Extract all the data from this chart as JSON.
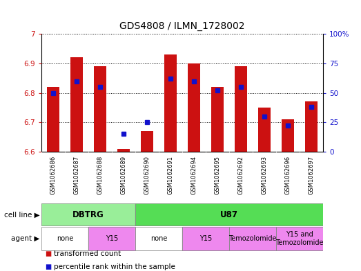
{
  "title": "GDS4808 / ILMN_1728002",
  "samples": [
    "GSM1062686",
    "GSM1062687",
    "GSM1062688",
    "GSM1062689",
    "GSM1062690",
    "GSM1062691",
    "GSM1062694",
    "GSM1062695",
    "GSM1062692",
    "GSM1062693",
    "GSM1062696",
    "GSM1062697"
  ],
  "red_values": [
    6.82,
    6.92,
    6.89,
    6.61,
    6.67,
    6.93,
    6.9,
    6.82,
    6.89,
    6.75,
    6.71,
    6.77
  ],
  "blue_values": [
    50,
    60,
    55,
    15,
    25,
    62,
    60,
    52,
    55,
    30,
    22,
    38
  ],
  "ymin": 6.6,
  "ymax": 7.0,
  "yticks": [
    6.6,
    6.7,
    6.8,
    6.9,
    7.0
  ],
  "right_yticks": [
    0,
    25,
    50,
    75,
    100
  ],
  "right_ylabels": [
    "0",
    "25",
    "50",
    "75",
    "100%"
  ],
  "bar_color": "#cc1111",
  "blue_color": "#1111cc",
  "bar_base": 6.6,
  "bar_width": 0.55,
  "cell_line_groups": [
    {
      "label": "DBTRG",
      "start": 0,
      "end": 4,
      "color": "#99ee99"
    },
    {
      "label": "U87",
      "start": 4,
      "end": 12,
      "color": "#55dd55"
    }
  ],
  "agent_groups": [
    {
      "label": "none",
      "start": 0,
      "end": 2,
      "color": "#ffffff"
    },
    {
      "label": "Y15",
      "start": 2,
      "end": 4,
      "color": "#ee88ee"
    },
    {
      "label": "none",
      "start": 4,
      "end": 6,
      "color": "#ffffff"
    },
    {
      "label": "Y15",
      "start": 6,
      "end": 8,
      "color": "#ee88ee"
    },
    {
      "label": "Temozolomide",
      "start": 8,
      "end": 10,
      "color": "#ee88ee"
    },
    {
      "label": "Y15 and\nTemozolomide",
      "start": 10,
      "end": 12,
      "color": "#ee88ee"
    }
  ],
  "cell_line_row_label": "cell line",
  "agent_row_label": "agent",
  "legend_red_label": "transformed count",
  "legend_blue_label": "percentile rank within the sample",
  "background_color": "#ffffff",
  "title_fontsize": 10,
  "tick_label_fontsize": 7.5,
  "sample_fontsize": 6,
  "row_label_fontsize": 7.5,
  "group_label_fontsize": 8.5,
  "legend_fontsize": 7.5
}
